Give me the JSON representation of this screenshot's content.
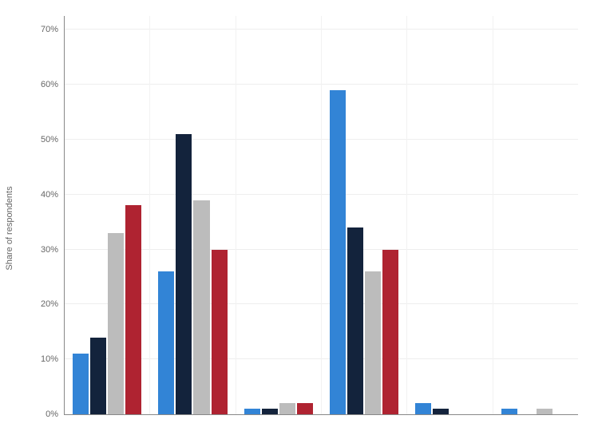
{
  "chart": {
    "type": "grouped-bar",
    "y_axis_label": "Share of respondents",
    "y_max": 72.5,
    "y_ticks": [
      0,
      10,
      20,
      30,
      40,
      50,
      60,
      70
    ],
    "y_tick_suffix": "%",
    "background_color": "#ffffff",
    "grid_color": "#eeeeee",
    "axis_color": "#888888",
    "label_color": "#666666",
    "label_fontsize": 11,
    "series_colors": [
      "#3284d6",
      "#13233c",
      "#bcbcbc",
      "#af2331"
    ],
    "groups": [
      {
        "values": [
          11,
          14,
          33,
          38
        ]
      },
      {
        "values": [
          26,
          51,
          39,
          30
        ]
      },
      {
        "values": [
          1,
          1,
          2,
          2
        ]
      },
      {
        "values": [
          59,
          34,
          26,
          30
        ]
      },
      {
        "values": [
          2,
          1,
          0,
          0
        ]
      },
      {
        "values": [
          1,
          0,
          1,
          0
        ]
      }
    ]
  }
}
